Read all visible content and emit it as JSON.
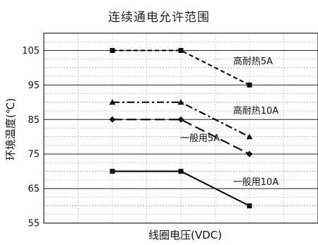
{
  "chart_data": {
    "type": "line",
    "title": "连续通电允许范围",
    "xlabel": "线圈电压(VDC)",
    "ylabel": "环境温度(℃)",
    "ylim": [
      55,
      110
    ],
    "yticks": [
      55,
      65,
      75,
      85,
      95,
      105
    ],
    "x": [
      1,
      2,
      3
    ],
    "xlim": [
      0,
      4
    ],
    "grid": true,
    "series": [
      {
        "name": "高耐热5A",
        "values": [
          105,
          105,
          95
        ],
        "color": "#111111",
        "dash": "short-dash",
        "marker": "square"
      },
      {
        "name": "高耐热10A",
        "values": [
          90,
          90,
          80
        ],
        "color": "#111111",
        "dash": "dash-dot",
        "marker": "triangle"
      },
      {
        "name": "一般用5A",
        "values": [
          85,
          85,
          75
        ],
        "color": "#111111",
        "dash": "long-dash",
        "marker": "diamond"
      },
      {
        "name": "一般用10A",
        "values": [
          70,
          70,
          60
        ],
        "color": "#111111",
        "dash": "solid",
        "marker": "square"
      }
    ]
  }
}
